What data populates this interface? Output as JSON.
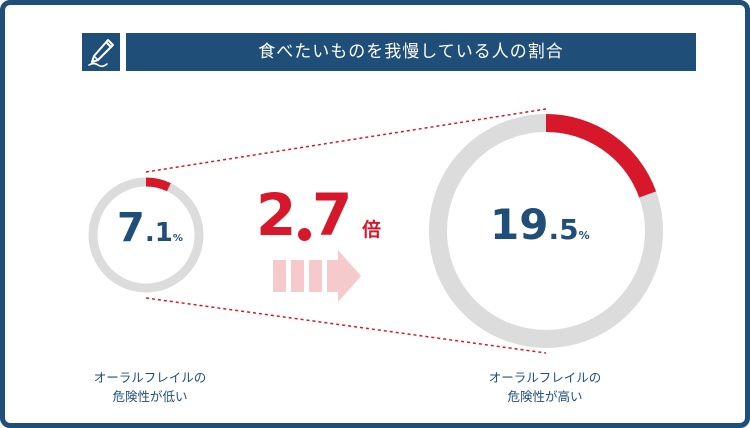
{
  "title": "食べたいものを我慢している人の割合",
  "chart_data": {
    "type": "donut",
    "title": "食べたいものを我慢している人の割合",
    "series": [
      {
        "label": [
          "オーラルフレイルの",
          "危険性が低い"
        ],
        "value": 7.1,
        "int": "7",
        "dec": ".1",
        "unit": "%"
      },
      {
        "label": [
          "オーラルフレイルの",
          "危険性が高い"
        ],
        "value": 19.5,
        "int": "19",
        "dec": ".5",
        "unit": "%"
      }
    ],
    "comparison": {
      "int": "2",
      "dec": "7",
      "value": 2.7,
      "unit": "倍"
    }
  },
  "colors": {
    "accent": "#d7182a",
    "navy": "#1f4e79",
    "track": "#dcdcdc",
    "arrow": "#f6c9cd"
  },
  "icon": "pen-icon"
}
